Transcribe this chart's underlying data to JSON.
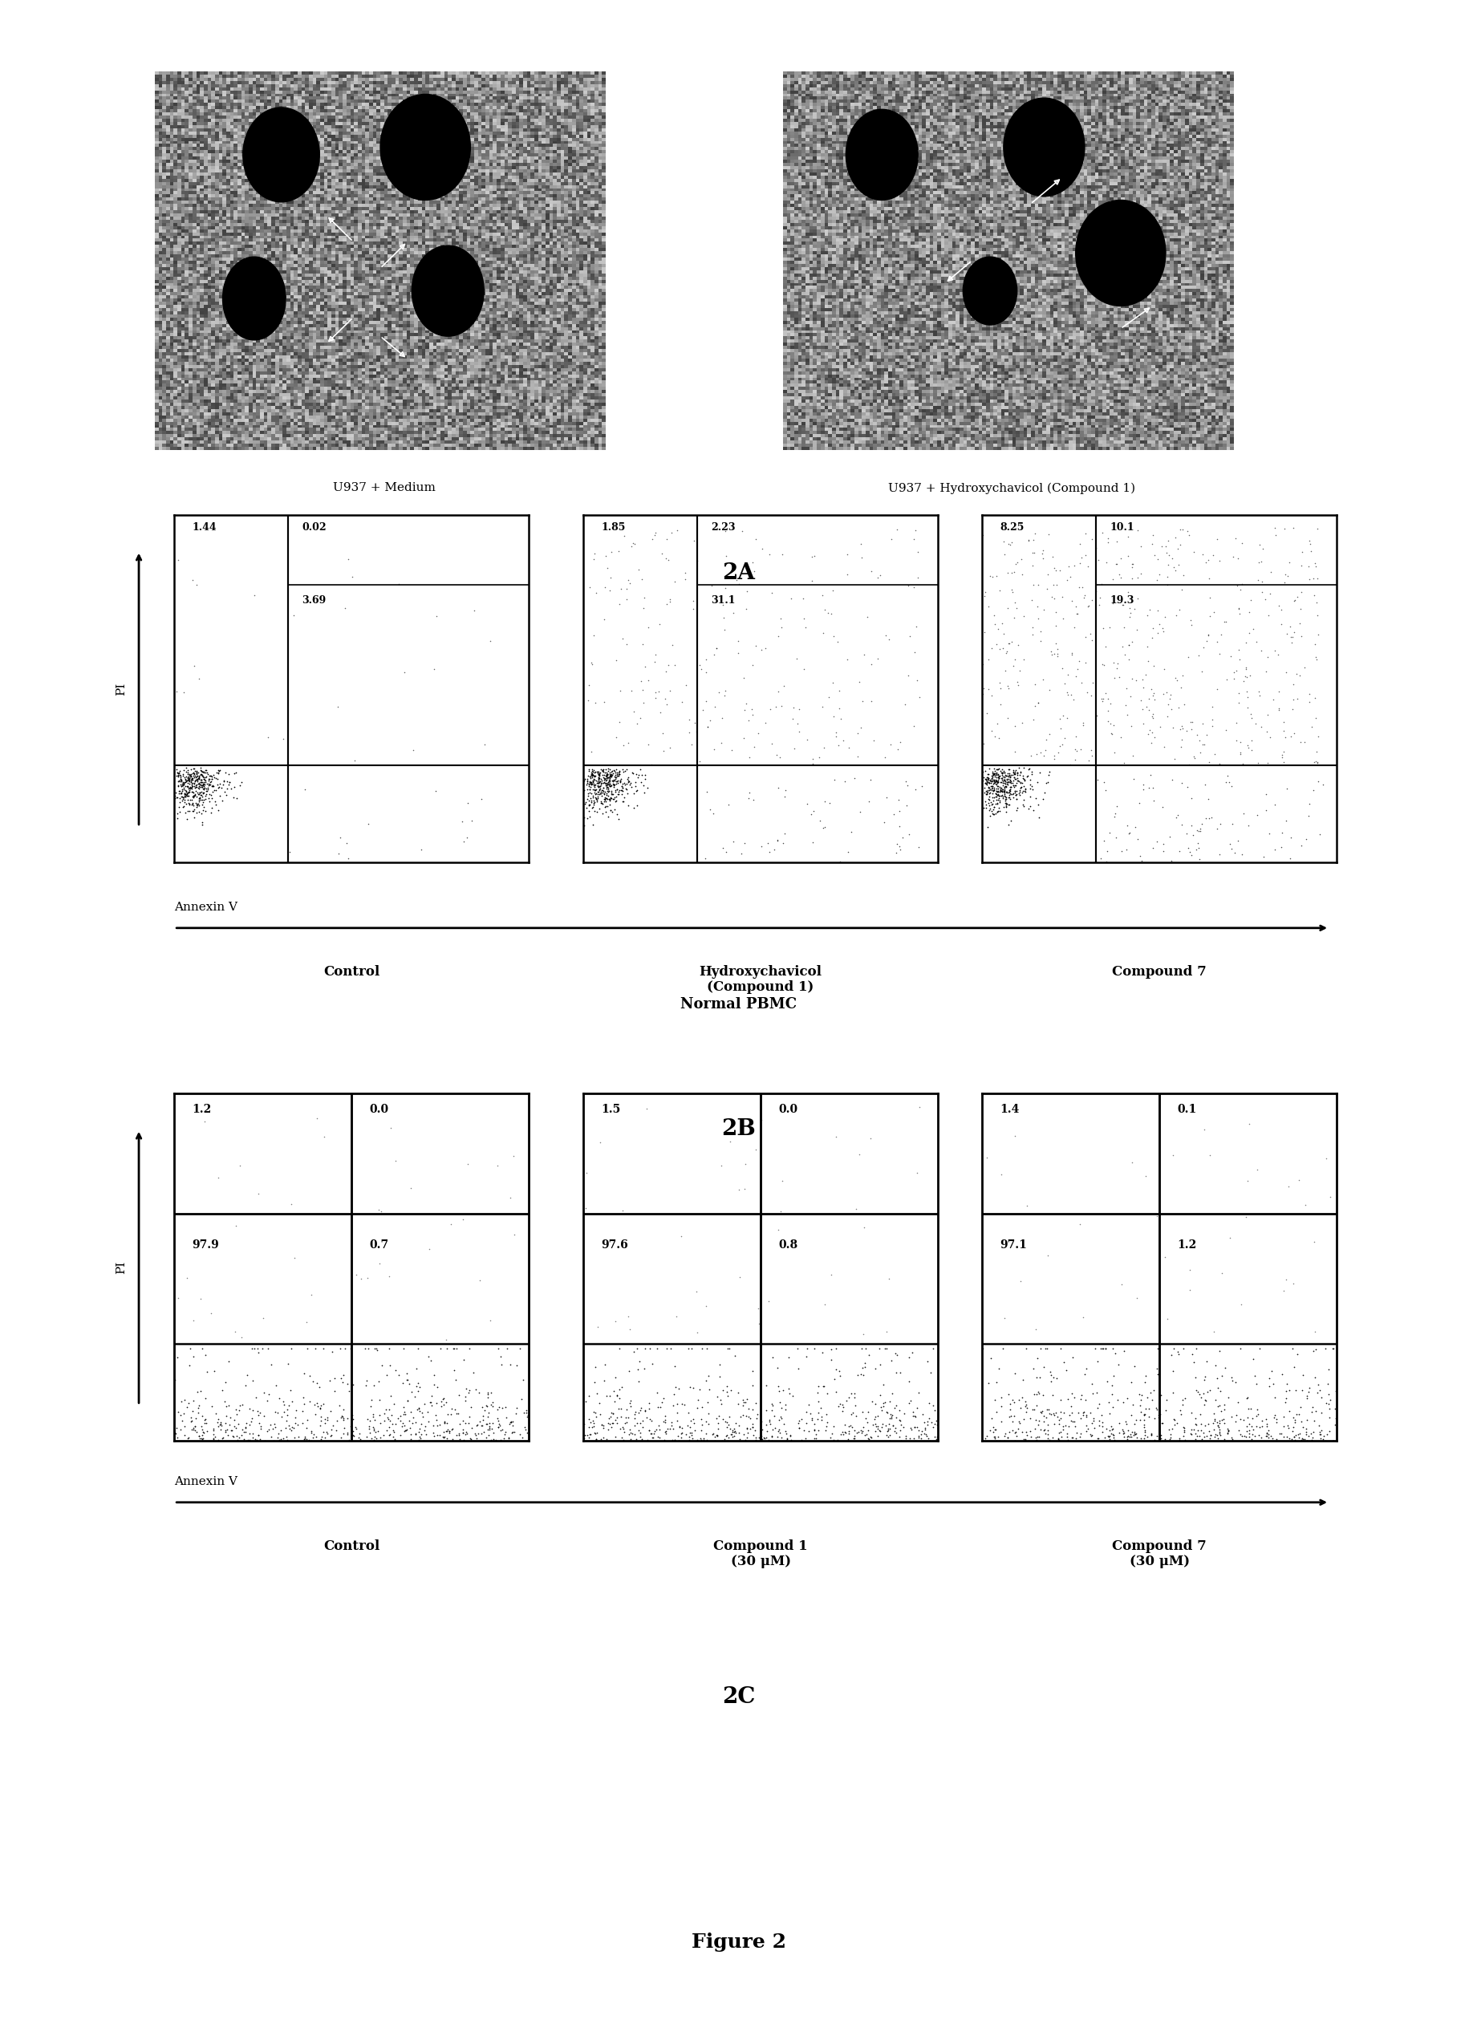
{
  "fig_width": 18.41,
  "fig_height": 25.48,
  "background_color": "#ffffff",
  "section_2A_label": "2A",
  "img_label_left": "U937 + Medium",
  "img_label_right": "U937 + Hydroxychavicol (Compound 1)",
  "section_2B_label": "2B",
  "annexin_arrow_label": "Annexin V",
  "pi_label": "PI",
  "panel_2B_labels": [
    "Control",
    "Hydroxychavicol\n(Compound 1)",
    "Compound 7"
  ],
  "panel_2B_numbers": [
    {
      "ul": "1.44",
      "ur": "0.02",
      "lr": "3.69"
    },
    {
      "ul": "1.85",
      "ur": "2.23",
      "lr": "31.1"
    },
    {
      "ul": "8.25",
      "ur": "10.1",
      "lr": "19.3"
    }
  ],
  "section_2C_label": "2C",
  "normal_pbmc_label": "Normal PBMC",
  "pi_label_c": "PI",
  "annexin_label_c": "Annexin V",
  "panel_2C_labels": [
    "Control",
    "Compound 1\n(30 μM)",
    "Compound 7\n(30 μM)"
  ],
  "panel_2C_numbers": [
    {
      "ul": "1.2",
      "ur": "0.0",
      "ll": "97.9",
      "lr": "0.7"
    },
    {
      "ul": "1.5",
      "ur": "0.0",
      "ll": "97.6",
      "lr": "0.8"
    },
    {
      "ul": "1.4",
      "ur": "0.1",
      "ll": "97.1",
      "lr": "1.2"
    }
  ],
  "figure_label": "Figure 2"
}
